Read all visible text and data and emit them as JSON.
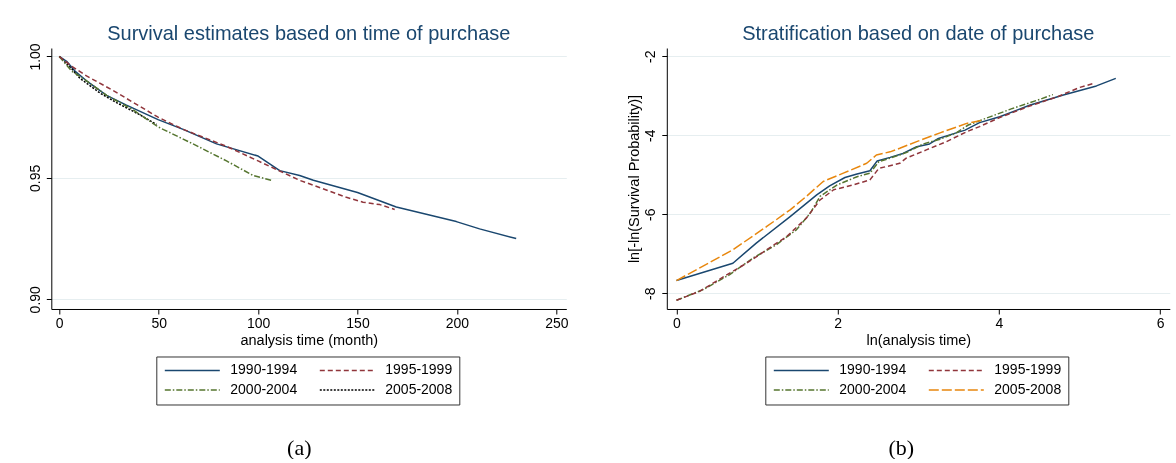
{
  "chart_data": [
    {
      "type": "line",
      "title": "Survival estimates based on time of purchase",
      "xlabel": "analysis time (month)",
      "annotations": [
        "(a)"
      ],
      "xlim": [
        -4,
        255
      ],
      "ylim": [
        0.896,
        1.0035
      ],
      "xticks": [
        0,
        50,
        100,
        150,
        200,
        250
      ],
      "yticks": [
        {
          "value": 0.9,
          "label": "0.90"
        },
        {
          "value": 0.95,
          "label": "0.95"
        },
        {
          "value": 1.0,
          "label": "1.00"
        }
      ],
      "grid": "y",
      "legend": "bottom",
      "series": [
        {
          "name": "1990-1994",
          "color": "#1a476f",
          "line_style": "solid",
          "x": [
            0,
            3.7,
            7.9,
            13.7,
            23.8,
            33.8,
            49.7,
            62.3,
            79.1,
            100,
            110.9,
            120.9,
            127.8,
            150,
            169.5,
            199.7,
            211.4,
            229.8
          ],
          "values": [
            1.0,
            0.998,
            0.994,
            0.99,
            0.984,
            0.98,
            0.974,
            0.97,
            0.964,
            0.959,
            0.953,
            0.951,
            0.949,
            0.944,
            0.938,
            0.932,
            0.929,
            0.925
          ]
        },
        {
          "name": "1995-1999",
          "color": "#90353b",
          "line_style": "dashed",
          "x": [
            0,
            6.2,
            13.7,
            27.1,
            49.7,
            62.3,
            84.1,
            100,
            120.9,
            127.8,
            144.4,
            152.8,
            161.2,
            168.7
          ],
          "values": [
            1.0,
            0.996,
            0.992,
            0.986,
            0.975,
            0.97,
            0.963,
            0.957,
            0.949,
            0.947,
            0.942,
            0.94,
            0.939,
            0.937
          ]
        },
        {
          "name": "2000-2004",
          "color": "#55752f",
          "line_style": "dashdot",
          "x": [
            0,
            6.2,
            13.7,
            23.8,
            37.2,
            49.7,
            67.3,
            84.1,
            97.5,
            106.7
          ],
          "values": [
            1.0,
            0.994,
            0.99,
            0.984,
            0.978,
            0.971,
            0.964,
            0.957,
            0.951,
            0.949
          ]
        },
        {
          "name": "2005-2008",
          "color": "#000000",
          "line_style": "dotted",
          "x": [
            0,
            6.2,
            10.4,
            20.4,
            28.8,
            40.5,
            48.9
          ],
          "values": [
            1.0,
            0.995,
            0.991,
            0.985,
            0.981,
            0.976,
            0.972
          ]
        }
      ]
    },
    {
      "type": "line",
      "title": "Stratification based on date of purchase",
      "xlabel": "ln(analysis time)",
      "ylabel": "ln[-ln(Survival Probability)]",
      "annotations": [
        "(b)"
      ],
      "xlim": [
        -0.12,
        6.12
      ],
      "ylim": [
        -8.4,
        -1.79
      ],
      "xticks": [
        0,
        2,
        4,
        6
      ],
      "yticks": [
        -8,
        -6,
        -4,
        -2
      ],
      "grid": "y",
      "legend": "bottom",
      "series": [
        {
          "name": "1990-1994",
          "color": "#1a476f",
          "line_style": "solid",
          "x": [
            0,
            0.7,
            0.99,
            1.41,
            1.74,
            1.9,
            2.09,
            2.24,
            2.4,
            2.49,
            2.65,
            2.81,
            2.98,
            3.14,
            3.25,
            3.39,
            3.58,
            3.76,
            4.01,
            4.38,
            4.8,
            5.21,
            5.45
          ],
          "values": [
            -7.68,
            -7.24,
            -6.73,
            -6.06,
            -5.51,
            -5.28,
            -5.07,
            -4.98,
            -4.9,
            -4.65,
            -4.56,
            -4.46,
            -4.29,
            -4.22,
            -4.08,
            -3.99,
            -3.87,
            -3.68,
            -3.53,
            -3.24,
            -2.98,
            -2.75,
            -2.56
          ]
        },
        {
          "name": "1995-1999",
          "color": "#90353b",
          "line_style": "dashed",
          "x": [
            0,
            0.29,
            0.66,
            0.87,
            1.12,
            1.37,
            1.61,
            1.78,
            1.95,
            2.19,
            2.4,
            2.51,
            2.77,
            2.85,
            3.1,
            3.35,
            3.6,
            3.76,
            4.01,
            4.38,
            4.72,
            5.0,
            5.17
          ],
          "values": [
            -8.18,
            -7.95,
            -7.49,
            -7.24,
            -6.9,
            -6.56,
            -6.1,
            -5.64,
            -5.38,
            -5.26,
            -5.13,
            -4.84,
            -4.71,
            -4.58,
            -4.37,
            -4.16,
            -3.91,
            -3.78,
            -3.55,
            -3.26,
            -3.03,
            -2.79,
            -2.69
          ]
        },
        {
          "name": "2000-2004",
          "color": "#55752f",
          "line_style": "dashdot",
          "x": [
            0,
            0.33,
            0.66,
            0.95,
            1.24,
            1.49,
            1.66,
            1.78,
            1.99,
            2.24,
            2.4,
            2.51,
            2.65,
            2.85,
            3.06,
            3.27,
            3.47,
            3.62,
            3.84,
            4.17,
            4.51,
            4.67
          ],
          "values": [
            -8.18,
            -7.91,
            -7.53,
            -7.11,
            -6.77,
            -6.39,
            -5.97,
            -5.55,
            -5.26,
            -5.05,
            -4.96,
            -4.67,
            -4.58,
            -4.44,
            -4.22,
            -4.1,
            -3.94,
            -3.74,
            -3.57,
            -3.32,
            -3.09,
            -2.97
          ]
        },
        {
          "name": "2005-2008",
          "color": "#e8870e",
          "line_style": "longdash",
          "x": [
            0,
            0.7,
            1.12,
            1.41,
            1.61,
            1.82,
            2.07,
            2.36,
            2.48,
            2.65,
            2.77,
            2.98,
            3.27,
            3.6,
            3.8
          ],
          "values": [
            -7.68,
            -6.9,
            -6.31,
            -5.89,
            -5.55,
            -5.17,
            -4.96,
            -4.71,
            -4.5,
            -4.42,
            -4.33,
            -4.16,
            -3.94,
            -3.7,
            -3.62
          ]
        }
      ]
    }
  ]
}
